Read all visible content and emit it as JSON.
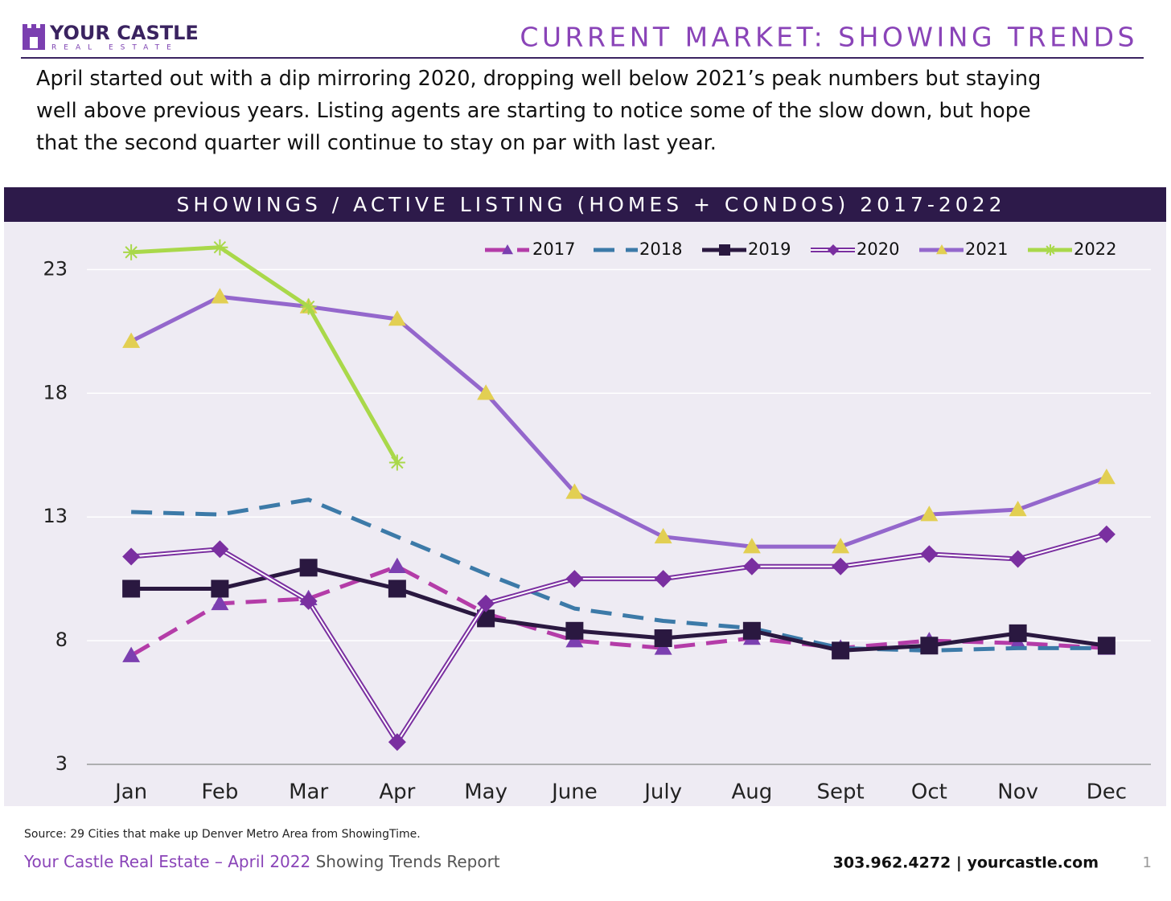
{
  "logo": {
    "name": "YOUR CASTLE",
    "tagline": "REAL ESTATE"
  },
  "header": {
    "title": "CURRENT MARKET: SHOWING TRENDS"
  },
  "intro": {
    "lines": [
      "April started out with a dip mirroring 2020, dropping well below 2021’s peak numbers but staying",
      "well above previous years. Listing agents are starting to notice some of the slow down, but hope",
      "that the second quarter will continue to stay on par with last year."
    ]
  },
  "chart_data": {
    "type": "line",
    "title": "SHOWINGS / ACTIVE LISTING (HOMES + CONDOS) 2017-2022",
    "categories": [
      "Jan",
      "Feb",
      "Mar",
      "Apr",
      "May",
      "June",
      "July",
      "Aug",
      "Sept",
      "Oct",
      "Nov",
      "Dec"
    ],
    "series": [
      {
        "name": "2017",
        "color": "#b43ca8",
        "line_style": "dashed",
        "marker": "triangle",
        "marker_color": "#7b3fb0",
        "values": [
          7.4,
          9.5,
          9.7,
          11.0,
          9.1,
          8.0,
          7.7,
          8.1,
          7.7,
          8.0,
          7.9,
          7.7
        ]
      },
      {
        "name": "2018",
        "color": "#3c7aa8",
        "line_style": "dashed",
        "marker": "none",
        "marker_color": "#3c7aa8",
        "values": [
          13.2,
          13.1,
          13.7,
          12.2,
          10.7,
          9.3,
          8.8,
          8.5,
          7.7,
          7.6,
          7.7,
          7.7
        ]
      },
      {
        "name": "2019",
        "color": "#2a1840",
        "line_style": "solid",
        "marker": "square",
        "marker_color": "#2a1840",
        "values": [
          10.1,
          10.1,
          10.95,
          10.1,
          8.9,
          8.4,
          8.1,
          8.4,
          7.6,
          7.8,
          8.3,
          7.8
        ]
      },
      {
        "name": "2020",
        "color": "#7a2fa0",
        "line_style": "double",
        "marker": "diamond",
        "marker_color": "#7a2fa0",
        "values": [
          11.4,
          11.7,
          9.6,
          3.9,
          9.5,
          10.5,
          10.5,
          11.0,
          11.0,
          11.5,
          11.3,
          12.3
        ]
      },
      {
        "name": "2021",
        "color": "#9467cc",
        "line_style": "solid",
        "marker": "triangle",
        "marker_color": "#e2cf52",
        "values": [
          20.1,
          21.9,
          21.5,
          21.0,
          18.0,
          14.0,
          12.2,
          11.8,
          11.8,
          13.1,
          13.3,
          14.6
        ]
      },
      {
        "name": "2022",
        "color": "#a9d84a",
        "line_style": "solid",
        "marker": "asterisk",
        "marker_color": "#a9d84a",
        "values": [
          23.7,
          23.9,
          21.5,
          15.2,
          null,
          null,
          null,
          null,
          null,
          null,
          null,
          null
        ]
      }
    ],
    "ylim": [
      3,
      24.8
    ],
    "yticks": [
      3,
      8,
      13,
      18,
      23
    ],
    "grid": true,
    "legend": "top-right"
  },
  "footer": {
    "source": "Source: 29 Cities that make up Denver Metro Area from ShowingTime.",
    "report_brand": "Your Castle Real Estate – April 2022",
    "report_name": " Showing Trends Report",
    "contact": "303.962.4272 | yourcastle.com",
    "page": "1"
  }
}
